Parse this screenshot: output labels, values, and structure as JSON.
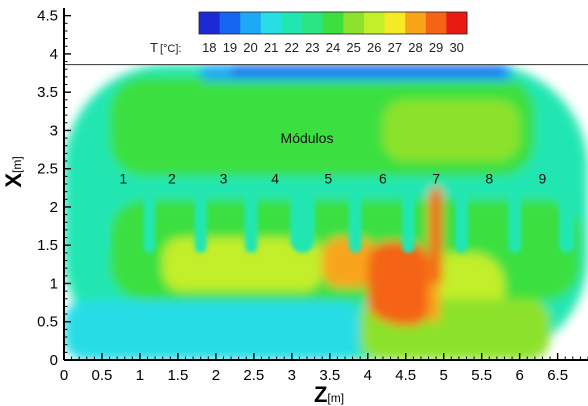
{
  "chart_data": {
    "type": "heatmap",
    "title": "",
    "xlabel": "Z",
    "xlabel_unit": "[m]",
    "ylabel": "X",
    "ylabel_unit": "[m]",
    "xlim": [
      0,
      6.9
    ],
    "ylim": [
      0,
      4.6
    ],
    "x_ticks": [
      "0",
      "0.5",
      "1",
      "1.5",
      "2",
      "2.5",
      "3",
      "3.5",
      "4",
      "4.5",
      "5",
      "5.5",
      "6",
      "6.5"
    ],
    "y_ticks": [
      "0",
      "0.5",
      "1",
      "1.5",
      "2",
      "2.5",
      "3",
      "3.5",
      "4",
      "4.5"
    ],
    "colorbar": {
      "label": "T",
      "unit": "[°C]:",
      "values": [
        "18",
        "19",
        "20",
        "21",
        "22",
        "23",
        "24",
        "25",
        "26",
        "27",
        "28",
        "29",
        "30"
      ],
      "colors": [
        "#1a2bd6",
        "#1565ee",
        "#1ea9f6",
        "#27dde6",
        "#21e6b2",
        "#29e683",
        "#3be03f",
        "#8ce22c",
        "#c2ee2a",
        "#f6e926",
        "#f9a51c",
        "#f46414",
        "#e71b12"
      ]
    },
    "annotation": "Módulos",
    "module_labels": [
      {
        "label": "1",
        "z": 0.78,
        "x": 2.37
      },
      {
        "label": "2",
        "z": 1.42,
        "x": 2.37
      },
      {
        "label": "3",
        "z": 2.1,
        "x": 2.37
      },
      {
        "label": "4",
        "z": 2.78,
        "x": 2.37
      },
      {
        "label": "5",
        "z": 3.48,
        "x": 2.37
      },
      {
        "label": "6",
        "z": 4.2,
        "x": 2.37
      },
      {
        "label": "7",
        "z": 4.9,
        "x": 2.37
      },
      {
        "label": "8",
        "z": 5.6,
        "x": 2.37
      },
      {
        "label": "9",
        "z": 6.3,
        "x": 2.37
      }
    ],
    "field_regions": [
      {
        "t": 22.5,
        "z": [
          0,
          6.9
        ],
        "x": [
          0,
          3.86
        ]
      },
      {
        "t": 21.3,
        "z": [
          0,
          3.9
        ],
        "x": [
          0,
          0.78
        ]
      },
      {
        "t": 24.0,
        "z": [
          0.6,
          6.2
        ],
        "x": [
          2.4,
          3.7
        ]
      },
      {
        "t": 24.8,
        "z": [
          4.2,
          6.0
        ],
        "x": [
          2.6,
          3.4
        ]
      },
      {
        "t": 20.5,
        "z": [
          1.8,
          5.9
        ],
        "x": [
          3.65,
          3.86
        ]
      },
      {
        "t": 19.3,
        "z": [
          2.2,
          5.8
        ],
        "x": [
          3.72,
          3.84
        ]
      },
      {
        "t": 24.0,
        "z": [
          0.6,
          6.8
        ],
        "x": [
          0.78,
          2.1
        ]
      },
      {
        "t": 25.6,
        "z": [
          1.3,
          3.4
        ],
        "x": [
          0.9,
          1.6
        ]
      },
      {
        "t": 26.4,
        "z": [
          1.6,
          2.0
        ],
        "x": [
          1.0,
          1.5
        ]
      },
      {
        "t": 26.4,
        "z": [
          2.6,
          2.9
        ],
        "x": [
          1.0,
          1.5
        ]
      },
      {
        "t": 26.0,
        "z": [
          4.6,
          5.8
        ],
        "x": [
          0.0,
          1.4
        ]
      },
      {
        "t": 24.6,
        "z": [
          3.9,
          6.4
        ],
        "x": [
          0.0,
          0.8
        ]
      },
      {
        "t": 28.2,
        "z": [
          3.4,
          4.1
        ],
        "x": [
          0.95,
          1.6
        ]
      },
      {
        "t": 28.6,
        "z": [
          4.0,
          4.8
        ],
        "x": [
          0.5,
          1.55
        ]
      },
      {
        "t": 29.2,
        "z": [
          4.2,
          4.8
        ],
        "x": [
          0.45,
          1.2
        ]
      },
      {
        "t": 28.0,
        "z": [
          4.8,
          4.95
        ],
        "x": [
          0.5,
          2.2
        ]
      },
      {
        "t": 28.8,
        "z": [
          4.82,
          4.98
        ],
        "x": [
          1.0,
          2.25
        ]
      }
    ],
    "module_columns": [
      {
        "t": 21.6,
        "z": [
          0.38,
          0.58
        ],
        "x": [
          1.4,
          2.25
        ]
      },
      {
        "t": 21.6,
        "z": [
          1.05,
          1.2
        ],
        "x": [
          1.4,
          2.2
        ]
      },
      {
        "t": 21.6,
        "z": [
          1.72,
          1.88
        ],
        "x": [
          1.4,
          2.25
        ]
      },
      {
        "t": 21.6,
        "z": [
          2.38,
          2.55
        ],
        "x": [
          1.4,
          2.2
        ]
      },
      {
        "t": 21.6,
        "z": [
          2.98,
          3.3
        ],
        "x": [
          1.4,
          2.25
        ]
      },
      {
        "t": 21.6,
        "z": [
          3.75,
          3.92
        ],
        "x": [
          1.4,
          2.2
        ]
      },
      {
        "t": 21.6,
        "z": [
          4.45,
          4.62
        ],
        "x": [
          1.4,
          2.25
        ]
      },
      {
        "t": 21.6,
        "z": [
          5.15,
          5.32
        ],
        "x": [
          1.4,
          2.2
        ]
      },
      {
        "t": 21.6,
        "z": [
          5.85,
          6.02
        ],
        "x": [
          1.4,
          2.25
        ]
      },
      {
        "t": 21.6,
        "z": [
          6.52,
          6.72
        ],
        "x": [
          1.4,
          2.2
        ]
      }
    ]
  }
}
